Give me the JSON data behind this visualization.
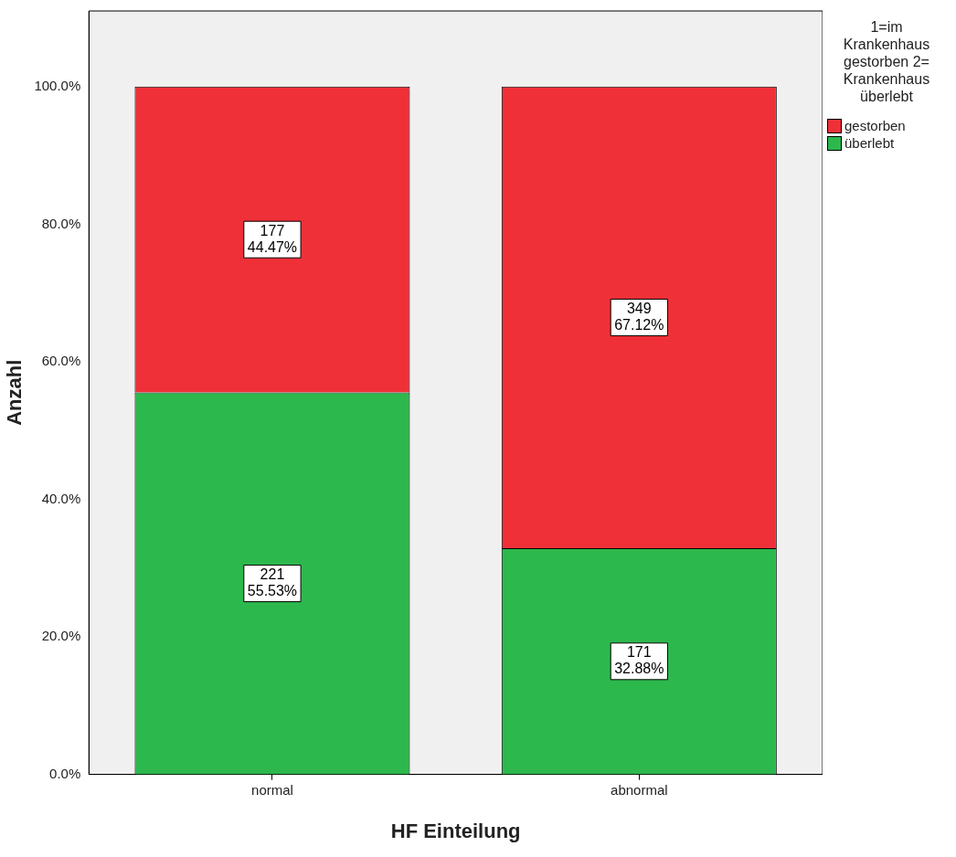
{
  "chart_data": {
    "type": "bar",
    "stacked": true,
    "xlabel": "HF Einteilung",
    "ylabel": "Anzahl",
    "categories": [
      "normal",
      "abnormal"
    ],
    "series": [
      {
        "name": "überlebt",
        "color": "#2db84d",
        "values": [
          55.53,
          32.88
        ],
        "value_labels": [
          "221\n55.53%",
          "171\n32.88%"
        ]
      },
      {
        "name": "gestorben",
        "color": "#ef3038",
        "values": [
          44.47,
          67.12
        ],
        "value_labels": [
          "177\n44.47%",
          "349\n67.12%"
        ]
      }
    ],
    "ylim": [
      0,
      111
    ],
    "yticks": [
      {
        "value": 0,
        "label": "0.0%"
      },
      {
        "value": 20,
        "label": "20.0%"
      },
      {
        "value": 40,
        "label": "40.0%"
      },
      {
        "value": 60,
        "label": "60.0%"
      },
      {
        "value": 80,
        "label": "80.0%"
      },
      {
        "value": 100,
        "label": "100.0%"
      }
    ],
    "grid": false,
    "legend": "top right",
    "legend_title": "1=im Krankenhaus gestorben 2= Krankenhaus überlebt"
  }
}
